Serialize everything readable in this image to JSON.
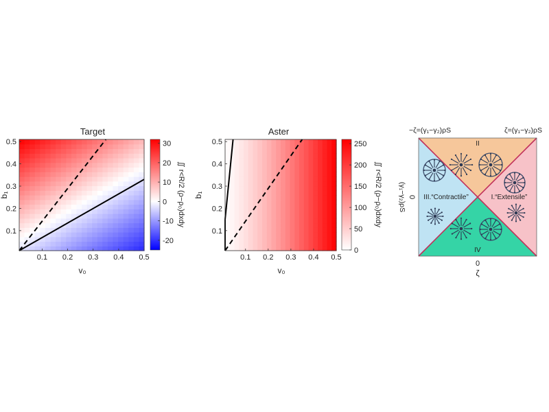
{
  "chart_data": [
    {
      "type": "heatmap",
      "title": "Target",
      "xlabel": "v₀",
      "ylabel": "b₁",
      "xlim": [
        0.01,
        0.5
      ],
      "ylim": [
        0.01,
        0.51
      ],
      "xticks": [
        "0.1",
        "0.2",
        "0.3",
        "0.4",
        "0.5"
      ],
      "xtick_values": [
        0.1,
        0.2,
        0.3,
        0.4,
        0.5
      ],
      "yticks": [
        "0.1",
        "0.2",
        "0.3",
        "0.4",
        "0.5"
      ],
      "ytick_values": [
        0.1,
        0.2,
        0.3,
        0.4,
        0.5
      ],
      "colorbar": {
        "label": "∬ r<R/2 (ρ−ρ₀)dxdy",
        "ticks": [
          "30",
          "20",
          "10",
          "0",
          "-10",
          "-20"
        ],
        "tick_values": [
          30,
          20,
          10,
          0,
          -10,
          -20
        ],
        "range": [
          -25,
          32
        ],
        "colors": [
          "#0000ff",
          "#ffffff",
          "#ff0000"
        ]
      },
      "grid_resolution": 24,
      "field": "z = 32 * (b1 - 0.66*v0) / 0.5 (estimated)",
      "lines": [
        {
          "style": "dashed",
          "points": [
            [
              0.01,
              0.01
            ],
            [
              0.35,
              0.51
            ]
          ]
        },
        {
          "style": "solid",
          "points": [
            [
              0.01,
              0.01
            ],
            [
              0.5,
              0.33
            ]
          ]
        }
      ]
    },
    {
      "type": "heatmap",
      "title": "Aster",
      "xlabel": "v₀",
      "ylabel": "b₁",
      "xlim": [
        0.01,
        0.5
      ],
      "ylim": [
        0.01,
        0.51
      ],
      "xticks": [
        "0.1",
        "0.2",
        "0.3",
        "0.4",
        "0.5"
      ],
      "xtick_values": [
        0.1,
        0.2,
        0.3,
        0.4,
        0.5
      ],
      "yticks": [
        "0.1",
        "0.2",
        "0.3",
        "0.4",
        "0.5"
      ],
      "ytick_values": [
        0.1,
        0.2,
        0.3,
        0.4,
        0.5
      ],
      "colorbar": {
        "label": "∬ r<R/2 (ρ−ρ₀)dxdy",
        "ticks": [
          "250",
          "200",
          "150",
          "100",
          "50",
          "0"
        ],
        "tick_values": [
          250,
          200,
          150,
          100,
          50,
          0
        ],
        "range": [
          0,
          260
        ],
        "colors": [
          "#ffffff",
          "#ff0000"
        ]
      },
      "grid_resolution": 24,
      "field": "z = 260 * (v0/0.5)^1.3 (estimated)",
      "lines": [
        {
          "style": "dashed",
          "points": [
            [
              0.01,
              0.01
            ],
            [
              0.35,
              0.51
            ]
          ]
        },
        {
          "style": "solid",
          "points": [
            [
              0.01,
              0.15
            ],
            [
              0.045,
              0.51
            ]
          ]
        },
        {
          "style": "solid",
          "points": [
            [
              0.01,
              0.01
            ],
            [
              0.01,
              0.15
            ]
          ]
        }
      ]
    }
  ],
  "diagram": {
    "top_left_label": "−ζ=(γ₁−γ₂)ρS",
    "top_right_label": "ζ=(γ₁−γ₂)ρS",
    "left_axis_label": "(γ₁−γ₂)ρS",
    "left_zero": "0",
    "bottom_zero": "0",
    "bottom_axis_label": "ζ",
    "regions": {
      "top": {
        "label": "II",
        "color": "#f6c79b"
      },
      "right": {
        "label": "I.“Extensile”",
        "color": "#f7c2c8"
      },
      "left": {
        "label": "III.“Contractile”",
        "color": "#bfe3f3"
      },
      "bottom": {
        "label": "IV",
        "color": "#35d4a6"
      }
    },
    "diagonal_color": "#c0305a"
  }
}
